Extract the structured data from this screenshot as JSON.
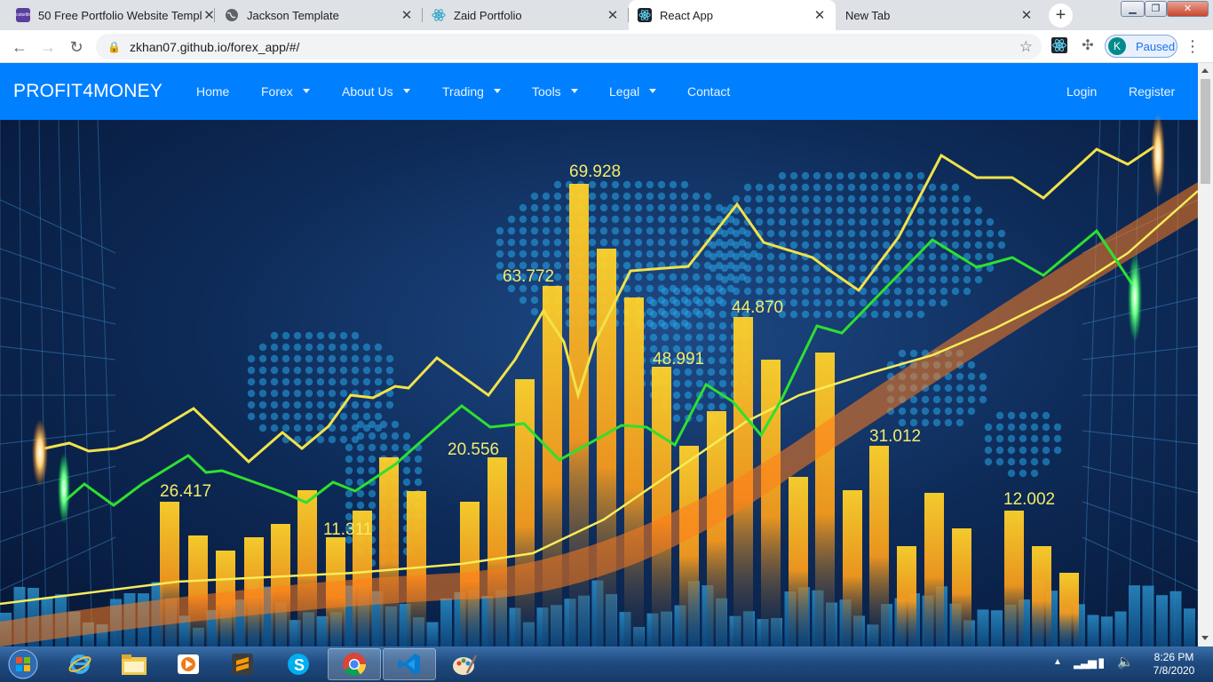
{
  "browser": {
    "tabs": [
      {
        "title": "50 Free Portfolio Website Templ",
        "favicon": "colorlib-icon",
        "active": false
      },
      {
        "title": "Jackson Template",
        "favicon": "globe-icon",
        "active": false
      },
      {
        "title": "Zaid Portfolio",
        "favicon": "react-icon",
        "active": false
      },
      {
        "title": "React App",
        "favicon": "react-icon",
        "active": true
      },
      {
        "title": "New Tab",
        "favicon": "",
        "active": false
      }
    ],
    "close_glyph": "✕",
    "new_tab_glyph": "+",
    "url": "zkhan07.github.io/forex_app/#/",
    "profile_initial": "K",
    "profile_status": "Paused"
  },
  "site": {
    "brand": "PROFIT4MONEY",
    "nav": [
      {
        "label": "Home",
        "dropdown": false
      },
      {
        "label": "Forex",
        "dropdown": true
      },
      {
        "label": "About Us",
        "dropdown": true
      },
      {
        "label": "Trading",
        "dropdown": true
      },
      {
        "label": "Tools",
        "dropdown": true
      },
      {
        "label": "Legal",
        "dropdown": true
      },
      {
        "label": "Contact",
        "dropdown": false
      }
    ],
    "auth": {
      "login": "Login",
      "register": "Register"
    },
    "hero_values": [
      "69.928",
      "63.772",
      "44.870",
      "48.991",
      "31.012",
      "26.417",
      "20.556",
      "11.311",
      "12.002"
    ]
  },
  "colors": {
    "navbar": "#0080ff",
    "bar_gold": "#f5b820",
    "line_yellow": "#f1e24a",
    "line_green": "#2ee02e"
  },
  "taskbar": {
    "apps": [
      "windows-start-icon",
      "internet-explorer-icon",
      "file-explorer-icon",
      "media-player-icon",
      "sublime-text-icon",
      "skype-icon",
      "chrome-icon",
      "vscode-icon",
      "paint-icon"
    ],
    "time": "8:26 PM",
    "date": "7/8/2020"
  }
}
